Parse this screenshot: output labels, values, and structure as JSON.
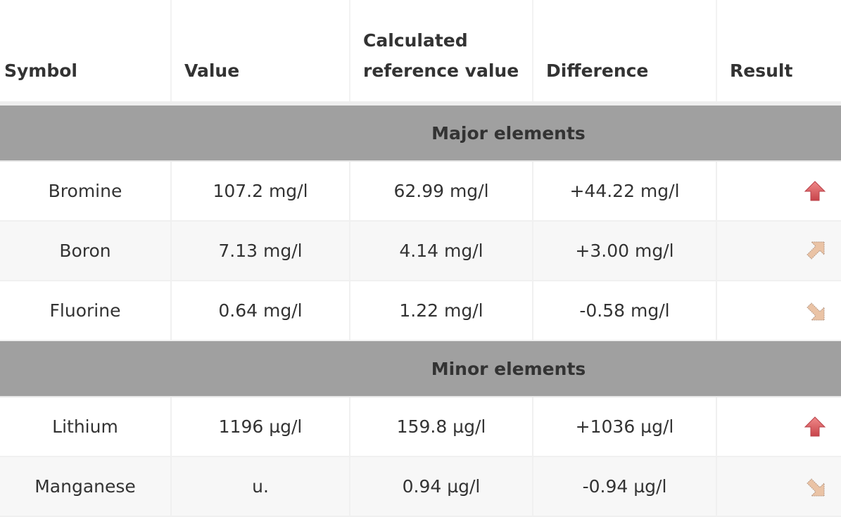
{
  "headers": [
    "Symbol",
    "Value",
    "Calculated reference value",
    "Difference",
    "Result"
  ],
  "sections": [
    {
      "title": "Major elements",
      "rows": [
        {
          "symbol": "Bromine",
          "value": "107.2 mg/l",
          "reference": "62.99 mg/l",
          "difference": "+44.22 mg/l",
          "result": "arrow-up-icon"
        },
        {
          "symbol": "Boron",
          "value": "7.13 mg/l",
          "reference": "4.14 mg/l",
          "difference": "+3.00 mg/l",
          "result": "arrow-up-right-icon"
        },
        {
          "symbol": "Fluorine",
          "value": "0.64 mg/l",
          "reference": "1.22 mg/l",
          "difference": "-0.58 mg/l",
          "result": "arrow-down-right-icon"
        }
      ]
    },
    {
      "title": "Minor elements",
      "rows": [
        {
          "symbol": "Lithium",
          "value": "1196 µg/l",
          "reference": "159.8 µg/l",
          "difference": "+1036 µg/l",
          "result": "arrow-up-icon"
        },
        {
          "symbol": "Manganese",
          "value": "u.",
          "reference": "0.94 µg/l",
          "difference": "-0.94 µg/l",
          "result": "arrow-down-right-icon"
        }
      ]
    }
  ],
  "colors": {
    "strong": "#d9534f",
    "mild": "#e8b99a"
  }
}
